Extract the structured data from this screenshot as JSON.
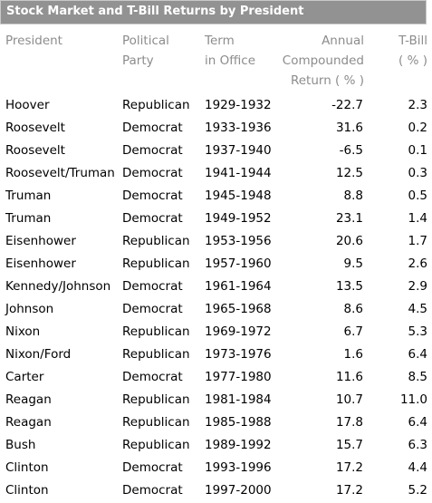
{
  "table": {
    "title": "Stock Market and T-Bill Returns by President",
    "headers": {
      "president": "President",
      "party": "Political\nParty",
      "term": "Term\nin Office",
      "annual_return": "Annual\nCompounded\nReturn ( % )",
      "tbill": "T-Bill\n( % )"
    },
    "rows": [
      {
        "president": "Hoover",
        "party": "Republican",
        "term": "1929-1932",
        "annual_return": "-22.7",
        "tbill": "2.3"
      },
      {
        "president": "Roosevelt",
        "party": "Democrat",
        "term": "1933-1936",
        "annual_return": "31.6",
        "tbill": "0.2"
      },
      {
        "president": "Roosevelt",
        "party": "Democrat",
        "term": "1937-1940",
        "annual_return": "-6.5",
        "tbill": "0.1"
      },
      {
        "president": "Roosevelt/Truman",
        "party": "Democrat",
        "term": "1941-1944",
        "annual_return": "12.5",
        "tbill": "0.3"
      },
      {
        "president": "Truman",
        "party": "Democrat",
        "term": "1945-1948",
        "annual_return": "8.8",
        "tbill": "0.5"
      },
      {
        "president": "Truman",
        "party": "Democrat",
        "term": "1949-1952",
        "annual_return": "23.1",
        "tbill": "1.4"
      },
      {
        "president": "Eisenhower",
        "party": "Republican",
        "term": "1953-1956",
        "annual_return": "20.6",
        "tbill": "1.7"
      },
      {
        "president": "Eisenhower",
        "party": "Republican",
        "term": "1957-1960",
        "annual_return": "9.5",
        "tbill": "2.6"
      },
      {
        "president": "Kennedy/Johnson",
        "party": "Democrat",
        "term": "1961-1964",
        "annual_return": "13.5",
        "tbill": "2.9"
      },
      {
        "president": "Johnson",
        "party": "Democrat",
        "term": "1965-1968",
        "annual_return": "8.6",
        "tbill": "4.5"
      },
      {
        "president": "Nixon",
        "party": "Republican",
        "term": "1969-1972",
        "annual_return": "6.7",
        "tbill": "5.3"
      },
      {
        "president": "Nixon/Ford",
        "party": "Republican",
        "term": "1973-1976",
        "annual_return": "1.6",
        "tbill": "6.4"
      },
      {
        "president": "Carter",
        "party": "Democrat",
        "term": "1977-1980",
        "annual_return": "11.6",
        "tbill": "8.5"
      },
      {
        "president": "Reagan",
        "party": "Republican",
        "term": "1981-1984",
        "annual_return": "10.7",
        "tbill": "11.0"
      },
      {
        "president": "Reagan",
        "party": "Republican",
        "term": "1985-1988",
        "annual_return": "17.8",
        "tbill": "6.4"
      },
      {
        "president": "Bush",
        "party": "Republican",
        "term": "1989-1992",
        "annual_return": "15.7",
        "tbill": "6.3"
      },
      {
        "president": "Clinton",
        "party": "Democrat",
        "term": "1993-1996",
        "annual_return": "17.2",
        "tbill": "4.4"
      },
      {
        "president": "Clinton",
        "party": "Democrat",
        "term": "1997-2000",
        "annual_return": "17.2",
        "tbill": "5.2"
      }
    ]
  }
}
